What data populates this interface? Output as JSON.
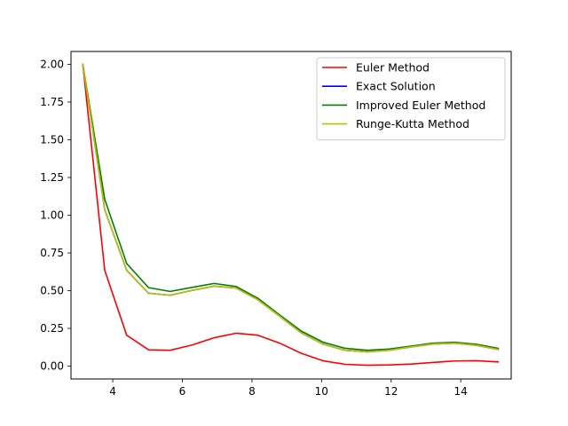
{
  "chart_data": {
    "type": "line",
    "title": "",
    "xlabel": "",
    "ylabel": "",
    "xlim": [
      2.8,
      15.45
    ],
    "ylim": [
      -0.085,
      2.085
    ],
    "xticks": [
      4,
      6,
      8,
      10,
      12,
      14
    ],
    "xtick_labels": [
      "4",
      "6",
      "8",
      "10",
      "12",
      "14"
    ],
    "yticks": [
      0,
      0.25,
      0.5,
      0.75,
      1.0,
      1.25,
      1.5,
      1.75,
      2.0
    ],
    "ytick_labels": [
      "0.00",
      "0.25",
      "0.50",
      "0.75",
      "1.00",
      "1.25",
      "1.50",
      "1.75",
      "2.00"
    ],
    "grid": false,
    "legend_position": "top-right",
    "x": [
      3.14,
      3.77,
      4.4,
      5.03,
      5.65,
      6.28,
      6.91,
      7.54,
      8.17,
      8.8,
      9.42,
      10.05,
      10.68,
      11.31,
      11.94,
      12.57,
      13.19,
      13.82,
      14.45,
      15.08
    ],
    "series": [
      {
        "name": "Euler Method",
        "color": "#ff0000",
        "values": [
          2.0,
          0.635,
          0.205,
          0.108,
          0.105,
          0.14,
          0.188,
          0.218,
          0.205,
          0.152,
          0.085,
          0.035,
          0.012,
          0.006,
          0.008,
          0.014,
          0.024,
          0.034,
          0.036,
          0.028
        ]
      },
      {
        "name": "Exact Solution",
        "color": "#0000ff",
        "values": [
          2.0,
          1.035,
          0.635,
          0.483,
          0.47,
          0.502,
          0.53,
          0.518,
          0.44,
          0.33,
          0.22,
          0.145,
          0.105,
          0.095,
          0.105,
          0.127,
          0.146,
          0.152,
          0.138,
          0.11
        ]
      },
      {
        "name": "Improved Euler Method",
        "color": "#008000",
        "values": [
          2.0,
          1.105,
          0.68,
          0.52,
          0.495,
          0.522,
          0.548,
          0.528,
          0.45,
          0.338,
          0.232,
          0.158,
          0.118,
          0.105,
          0.113,
          0.132,
          0.152,
          0.158,
          0.145,
          0.118
        ]
      },
      {
        "name": "Runge-Kutta Method",
        "color": "#bfbf00",
        "values": [
          2.0,
          1.035,
          0.635,
          0.483,
          0.47,
          0.502,
          0.53,
          0.518,
          0.44,
          0.33,
          0.22,
          0.145,
          0.105,
          0.095,
          0.105,
          0.127,
          0.146,
          0.152,
          0.138,
          0.11
        ]
      }
    ]
  }
}
